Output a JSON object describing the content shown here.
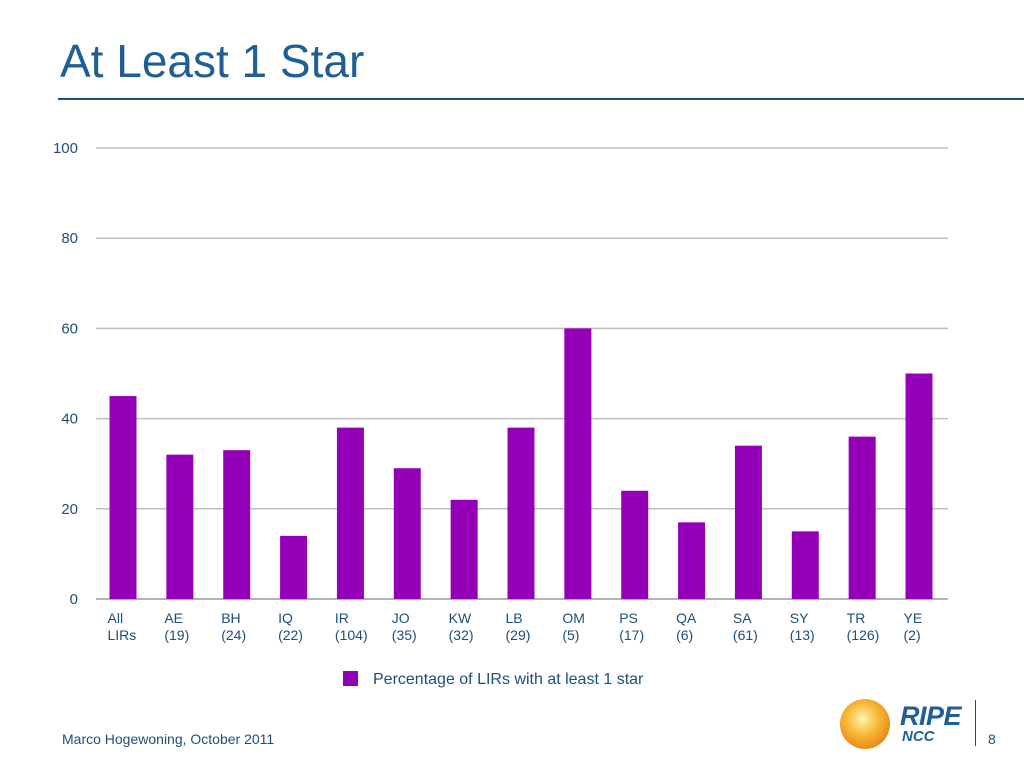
{
  "slide": {
    "title": "At Least 1 Star",
    "footer_author": "Marco Hogewoning, October 2011",
    "page_number": "8",
    "logo": {
      "name": "ripe-ncc-logo",
      "line1": "RIPE",
      "line2": "NCC"
    }
  },
  "colors": {
    "title": "#1f5f96",
    "rule": "#1f4e79",
    "bar": "#9400b8",
    "grid": "#bfbfbf",
    "axis_text": "#1f4e79",
    "logo_sun": "#f5a623"
  },
  "chart_data": {
    "type": "bar",
    "categories": [
      [
        "All",
        "LIRs"
      ],
      [
        "AE",
        "(19)"
      ],
      [
        "BH",
        "(24)"
      ],
      [
        "IQ",
        "(22)"
      ],
      [
        "IR",
        "(104)"
      ],
      [
        "JO",
        "(35)"
      ],
      [
        "KW",
        "(32)"
      ],
      [
        "LB",
        "(29)"
      ],
      [
        "OM",
        "(5)"
      ],
      [
        "PS",
        "(17)"
      ],
      [
        "QA",
        "(6)"
      ],
      [
        "SA",
        "(61)"
      ],
      [
        "SY",
        "(13)"
      ],
      [
        "TR",
        "(126)"
      ],
      [
        "YE",
        "(2)"
      ]
    ],
    "series": [
      {
        "name": "Percentage of LIRs with at least 1 star",
        "values": [
          45,
          32,
          33,
          14,
          38,
          29,
          22,
          38,
          60,
          24,
          17,
          34,
          15,
          36,
          50
        ]
      }
    ],
    "ylim": [
      0,
      100
    ],
    "yticks": [
      0,
      20,
      40,
      60,
      80,
      100
    ],
    "grid": true,
    "legend": "bottom-center"
  }
}
